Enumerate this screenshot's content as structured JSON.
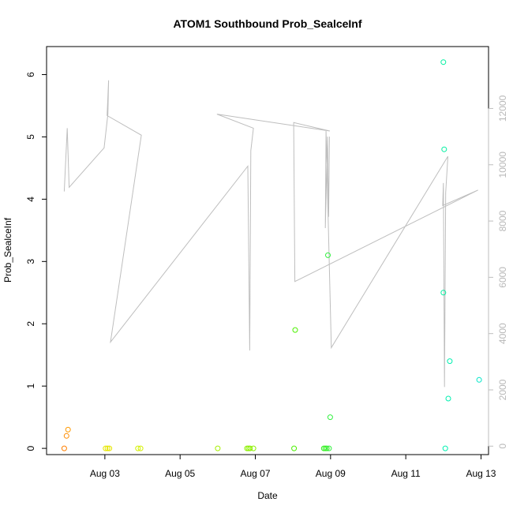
{
  "chart_data": {
    "type": "scatter",
    "title": "ATOM1 Southbound Prob_SealceInf",
    "xlabel": "Date",
    "ylabel": "Prob_SealceInf",
    "x_ticks": [
      "Aug 03",
      "Aug 05",
      "Aug 07",
      "Aug 09",
      "Aug 11",
      "Aug 13"
    ],
    "x_tick_days": [
      3,
      5,
      7,
      9,
      11,
      13
    ],
    "xlim_days": [
      1.45,
      13.2
    ],
    "ylim": [
      -0.1,
      6.45
    ],
    "y_ticks": [
      0,
      1,
      2,
      3,
      4,
      5,
      6
    ],
    "y2lim": [
      -300,
      14200
    ],
    "y2_ticks": [
      0,
      2000,
      4000,
      6000,
      8000,
      10000,
      12000
    ],
    "y2_color": "#bebebe",
    "points": [
      {
        "x": 1.92,
        "y": 0.0,
        "color": "#ff7f00"
      },
      {
        "x": 1.98,
        "y": 0.2,
        "color": "#ff8c00"
      },
      {
        "x": 2.02,
        "y": 0.3,
        "color": "#ff9900"
      },
      {
        "x": 3.02,
        "y": 0.0,
        "color": "#e6e600"
      },
      {
        "x": 3.07,
        "y": 0.0,
        "color": "#e6e600"
      },
      {
        "x": 3.12,
        "y": 0.0,
        "color": "#e6e600"
      },
      {
        "x": 3.88,
        "y": 0.0,
        "color": "#d4f000"
      },
      {
        "x": 3.95,
        "y": 0.0,
        "color": "#d4f000"
      },
      {
        "x": 6.0,
        "y": 0.0,
        "color": "#a6f000"
      },
      {
        "x": 6.78,
        "y": 0.0,
        "color": "#8cf000"
      },
      {
        "x": 6.82,
        "y": 0.0,
        "color": "#8cf000"
      },
      {
        "x": 6.86,
        "y": 0.0,
        "color": "#8cf000"
      },
      {
        "x": 6.95,
        "y": 0.0,
        "color": "#8cf000"
      },
      {
        "x": 8.03,
        "y": 0.0,
        "color": "#4cf000"
      },
      {
        "x": 8.06,
        "y": 1.9,
        "color": "#4cf000"
      },
      {
        "x": 8.82,
        "y": 0.0,
        "color": "#33f020"
      },
      {
        "x": 8.86,
        "y": 0.0,
        "color": "#33f020"
      },
      {
        "x": 8.9,
        "y": 0.0,
        "color": "#33f020"
      },
      {
        "x": 8.93,
        "y": 3.1,
        "color": "#33f040"
      },
      {
        "x": 8.96,
        "y": 0.0,
        "color": "#33f040"
      },
      {
        "x": 8.99,
        "y": 0.5,
        "color": "#33f040"
      },
      {
        "x": 12.0,
        "y": 6.2,
        "color": "#00f0a0"
      },
      {
        "x": 12.02,
        "y": 4.8,
        "color": "#00f0a0"
      },
      {
        "x": 12.0,
        "y": 2.5,
        "color": "#00f0a0"
      },
      {
        "x": 12.05,
        "y": 0.0,
        "color": "#00f0b0"
      },
      {
        "x": 12.13,
        "y": 0.8,
        "color": "#00f0b0"
      },
      {
        "x": 12.17,
        "y": 1.4,
        "color": "#00f0b0"
      },
      {
        "x": 12.95,
        "y": 1.1,
        "color": "#00e6c8"
      }
    ],
    "line_series": {
      "axis": "right",
      "color": "#bebebe",
      "points": [
        [
          1.92,
          9050
        ],
        [
          2.0,
          11300
        ],
        [
          2.05,
          9200
        ],
        [
          2.98,
          10600
        ],
        [
          3.08,
          11800
        ],
        [
          3.1,
          13000
        ],
        [
          3.06,
          11750
        ],
        [
          3.97,
          11050
        ],
        [
          3.15,
          3700
        ],
        [
          6.8,
          9950
        ],
        [
          6.85,
          3400
        ],
        [
          6.88,
          10500
        ],
        [
          6.95,
          11300
        ],
        [
          5.98,
          11800
        ],
        [
          8.98,
          11200
        ],
        [
          8.02,
          11500
        ],
        [
          8.05,
          5850
        ],
        [
          12.92,
          9100
        ],
        [
          11.98,
          8550
        ],
        [
          12.0,
          9350
        ],
        [
          12.03,
          2100
        ],
        [
          12.06,
          9000
        ],
        [
          12.12,
          10300
        ],
        [
          9.02,
          3500
        ],
        [
          8.88,
          11200
        ],
        [
          8.86,
          7750
        ],
        [
          8.92,
          11000
        ],
        [
          8.95,
          8150
        ],
        [
          8.97,
          11000
        ]
      ]
    }
  }
}
